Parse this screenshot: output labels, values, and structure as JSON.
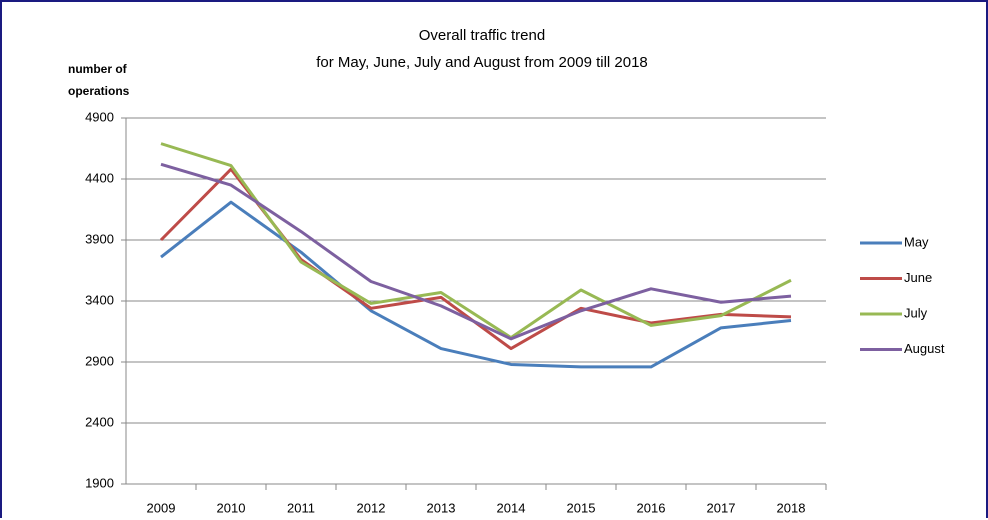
{
  "chart_data": {
    "type": "line",
    "title": "Overall traffic trend",
    "subtitle": "for May, June, July and August from 2009 till 2018",
    "y_label": "number of operations",
    "categories": [
      "2009",
      "2010",
      "2011",
      "2012",
      "2013",
      "2014",
      "2015",
      "2016",
      "2017",
      "2018"
    ],
    "series": [
      {
        "name": "May",
        "color": "#4a7ebb",
        "values": [
          3760,
          4210,
          3800,
          3320,
          3010,
          2880,
          2860,
          2860,
          3180,
          3240
        ]
      },
      {
        "name": "June",
        "color": "#be4b48",
        "values": [
          3900,
          4480,
          3740,
          3340,
          3430,
          3010,
          3340,
          3220,
          3290,
          3270
        ]
      },
      {
        "name": "July",
        "color": "#98b954",
        "values": [
          4690,
          4510,
          3720,
          3380,
          3470,
          3100,
          3490,
          3200,
          3280,
          3570
        ]
      },
      {
        "name": "August",
        "color": "#7d60a0",
        "values": [
          4520,
          4350,
          3970,
          3560,
          3360,
          3090,
          3320,
          3500,
          3390,
          3440
        ]
      }
    ],
    "ylim": [
      1900,
      4900
    ],
    "yticks": [
      1900,
      2400,
      2900,
      3400,
      3900,
      4400,
      4900
    ],
    "grid": true,
    "legend": "right"
  }
}
